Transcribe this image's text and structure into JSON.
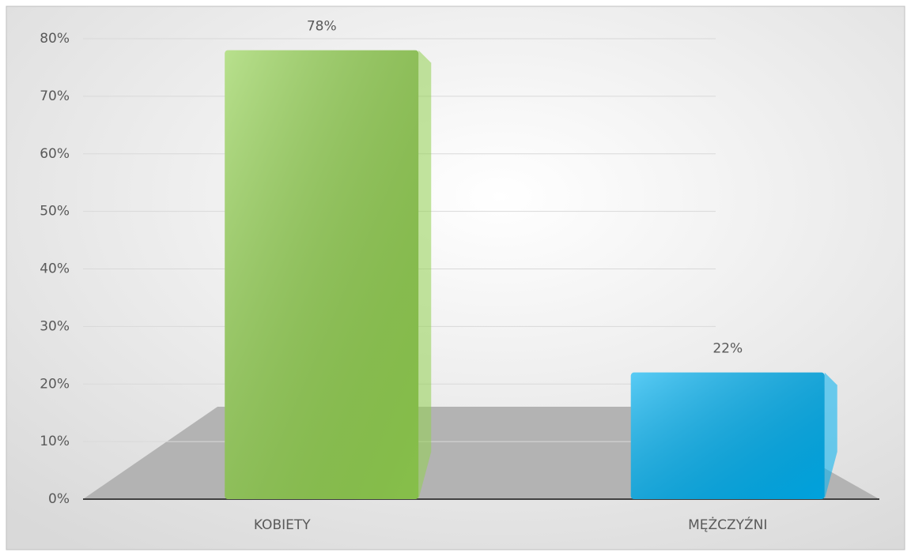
{
  "chart_data": {
    "type": "bar",
    "categories": [
      "KOBIETY",
      "MĘŻCZYŹNI"
    ],
    "values": [
      78,
      22
    ],
    "value_labels": [
      "78%",
      "22%"
    ],
    "colors": [
      "#92d050",
      "#00b0f0"
    ],
    "ylim": [
      0,
      80
    ],
    "yticks": [
      {
        "value": 0,
        "label": "0%"
      },
      {
        "value": 10,
        "label": "10%"
      },
      {
        "value": 20,
        "label": "20%"
      },
      {
        "value": 30,
        "label": "30%"
      },
      {
        "value": 40,
        "label": "40%"
      },
      {
        "value": 50,
        "label": "50%"
      },
      {
        "value": 60,
        "label": "60%"
      },
      {
        "value": 70,
        "label": "70%"
      },
      {
        "value": 80,
        "label": "80%"
      }
    ],
    "grid": true
  }
}
